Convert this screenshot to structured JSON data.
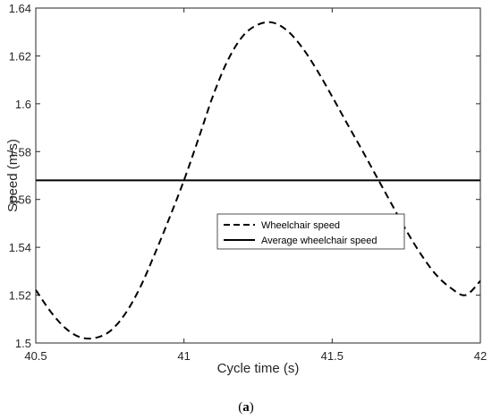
{
  "chart_data": {
    "type": "line",
    "title": "",
    "xlabel": "Cycle time (s)",
    "ylabel": "Speed (m/s)",
    "xlim": [
      40.5,
      42
    ],
    "ylim": [
      1.5,
      1.64
    ],
    "xticks": [
      40.5,
      41,
      41.5,
      42
    ],
    "yticks": [
      1.5,
      1.52,
      1.54,
      1.56,
      1.58,
      1.6,
      1.62,
      1.64
    ],
    "xtick_labels": [
      "40.5",
      "41",
      "41.5",
      "42"
    ],
    "ytick_labels": [
      "1.5",
      "1.52",
      "1.54",
      "1.56",
      "1.58",
      "1.6",
      "1.62",
      "1.64"
    ],
    "grid": false,
    "legend_position": "center-right",
    "series": [
      {
        "name": "Wheelchair speed",
        "style": "dashed",
        "color": "#000000",
        "x": [
          40.5,
          40.55,
          40.6,
          40.65,
          40.7,
          40.75,
          40.8,
          40.85,
          40.9,
          40.95,
          41.0,
          41.05,
          41.1,
          41.15,
          41.2,
          41.25,
          41.3,
          41.35,
          41.4,
          41.45,
          41.5,
          41.55,
          41.6,
          41.65,
          41.7,
          41.75,
          41.8,
          41.85,
          41.9,
          41.95,
          42.0
        ],
        "y": [
          1.5222,
          1.5131,
          1.5062,
          1.5024,
          1.5021,
          1.5049,
          1.5119,
          1.5227,
          1.5368,
          1.552,
          1.568,
          1.5858,
          1.604,
          1.6187,
          1.6285,
          1.6331,
          1.6339,
          1.6304,
          1.6233,
          1.6138,
          1.603,
          1.5918,
          1.5808,
          1.5695,
          1.5582,
          1.547,
          1.537,
          1.5286,
          1.523,
          1.52,
          1.526
        ]
      },
      {
        "name": "Average wheelchair speed",
        "style": "solid",
        "color": "#000000",
        "x": [
          40.5,
          42.0
        ],
        "y": [
          1.568,
          1.568
        ]
      }
    ]
  },
  "caption": {
    "open": "(",
    "letter": "a",
    "close": ")"
  }
}
